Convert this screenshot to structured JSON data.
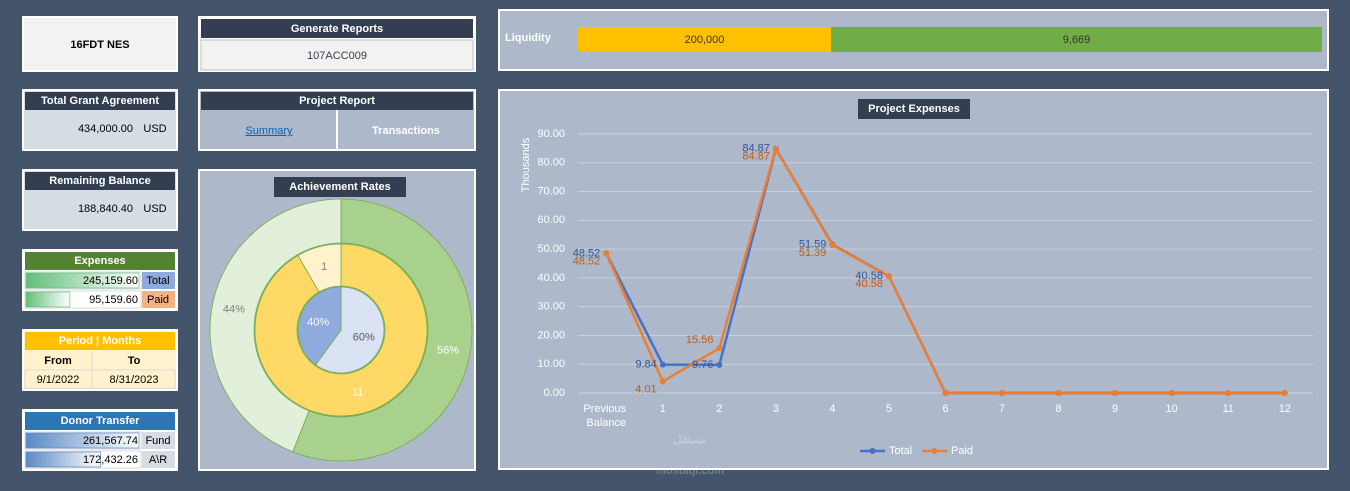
{
  "header": {
    "code": "16FDT NES"
  },
  "generate_reports": {
    "title": "Generate Reports",
    "code": "107ACC009"
  },
  "project_report": {
    "title": "Project Report",
    "links": [
      "Summary",
      "Transactions"
    ]
  },
  "total_grant": {
    "title": "Total Grant Agreement",
    "amount": "434,000.00",
    "currency": "USD"
  },
  "remaining_balance": {
    "title": "Remaining Balance",
    "amount": "188,840.40",
    "currency": "USD"
  },
  "expenses": {
    "title": "Expenses",
    "values": [
      245159.6,
      95159.6
    ],
    "value_labels": [
      "245,159.60",
      "95,159.60"
    ],
    "labels": [
      "Total",
      "Paid"
    ],
    "label_colors": [
      "#8faadc",
      "#f4b183"
    ],
    "color": "#63be7b"
  },
  "period": {
    "title": "Period | Months",
    "headers": [
      "From",
      "To"
    ],
    "dates": [
      "9/1/2022",
      "8/31/2023"
    ]
  },
  "donor_transfer": {
    "title": "Donor Transfer",
    "values": [
      261567.74,
      172432.26
    ],
    "value_labels": [
      "261,567.74",
      "172,432.26"
    ],
    "labels": [
      "Fund",
      "A\\R"
    ],
    "color": "#5a8ac6"
  },
  "liquidity": {
    "title": "Liquidity",
    "cells": [
      "200,000",
      "9,669"
    ],
    "colors": [
      "#ffc000",
      "#70ad47"
    ]
  },
  "watermark": {
    "arabic": "مستقل",
    "latin": "mostaql.com"
  },
  "chart_data": [
    {
      "type": "donut",
      "title": "Achievement Rates",
      "rings": [
        {
          "values": [
            60,
            40
          ],
          "value_labels": [
            "60%",
            "40%"
          ],
          "colors": [
            "#dae3f3",
            "#8faadc"
          ],
          "label_colors": [
            "#595959",
            "#ffffff"
          ]
        },
        {
          "values": [
            11,
            1
          ],
          "colors": [
            "#ffd966",
            "#fff2cc"
          ],
          "label_colors": [
            "#ffffff",
            "#7f7f7f"
          ]
        },
        {
          "values": [
            56,
            44
          ],
          "value_labels": [
            "56%",
            "44%"
          ],
          "colors": [
            "#a9d18e",
            "#e2efda"
          ],
          "label_colors": [
            "#ffffff",
            "#7f7f7f"
          ]
        }
      ]
    },
    {
      "type": "line",
      "title": "Project Expenses",
      "y_label": "Thousands",
      "categories": [
        "Previous Balance",
        "1",
        "2",
        "3",
        "4",
        "5",
        "6",
        "7",
        "8",
        "9",
        "10",
        "11",
        "12"
      ],
      "series": [
        {
          "name": "Total",
          "color": "#4472c4",
          "label_color": "#2f5597",
          "values": [
            48.52,
            9.84,
            9.76,
            84.87,
            51.59,
            40.58,
            0,
            0,
            0,
            0,
            0,
            0,
            0
          ]
        },
        {
          "name": "Paid",
          "color": "#ed7d31",
          "label_color": "#c55a11",
          "values": [
            48.52,
            4.01,
            15.56,
            84.87,
            51.39,
            40.58,
            0,
            0,
            0,
            0,
            0,
            0,
            0
          ]
        }
      ],
      "ylim": [
        0,
        90
      ],
      "yticks": [
        {
          "value": 0,
          "label": "0.00"
        },
        {
          "value": 10,
          "label": "10.00"
        },
        {
          "value": 20,
          "label": "20.00"
        },
        {
          "value": 30,
          "label": "30.00"
        },
        {
          "value": 40,
          "label": "40.00"
        },
        {
          "value": 50,
          "label": "50.00"
        },
        {
          "value": 60,
          "label": "60.00"
        },
        {
          "value": 70,
          "label": "70.00"
        },
        {
          "value": 80,
          "label": "80.00"
        },
        {
          "value": 90,
          "label": "90.00"
        }
      ],
      "grid": true,
      "legend": "bottom"
    }
  ]
}
